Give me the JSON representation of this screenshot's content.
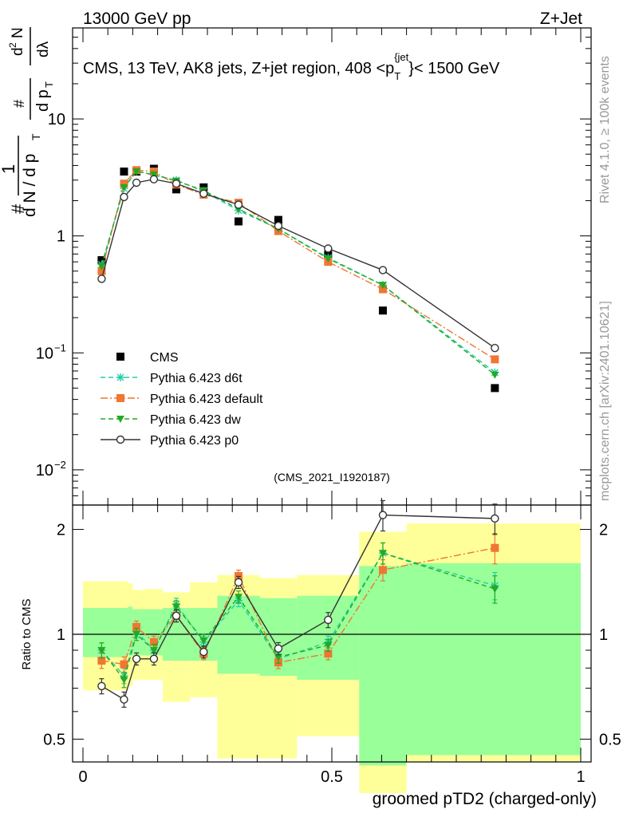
{
  "header": {
    "left": "13000 GeV pp",
    "right": "Z+Jet"
  },
  "side_text": {
    "top": "Rivet 4.1.0, ≥ 100k events",
    "bottom": "mcplots.cern.ch [arXiv:2401.10621]"
  },
  "watermark": "(CMS_2021_I1920187)",
  "chart_data": [
    {
      "type": "scatter",
      "role": "main",
      "title": "CMS, 13 TeV, AK8 jets, Z+jet region, 408 <p_T^{jet}< 1500 GeV",
      "title_parts": {
        "prefix": "CMS, 13 TeV, AK8 jets, Z+jet region, 408 <p",
        "sub": "T",
        "sup": "{jet",
        "suffix": "}< 1500 GeV"
      },
      "ylabel": "1/N dN/dp_T dN/dλ",
      "ylabel_parts": [
        "#",
        "1",
        "d N / d p",
        "T",
        "#",
        "d p",
        "T",
        "d",
        "2",
        "N",
        "dλ"
      ],
      "yscale": "log",
      "ylim": [
        0.005,
        60
      ],
      "xlim": [
        0,
        1
      ],
      "yticklabels": [
        {
          "v": 10,
          "base": "10",
          "exp": ""
        },
        {
          "v": 1,
          "base": "1",
          "exp": ""
        },
        {
          "v": 0.1,
          "base": "10",
          "exp": "−1"
        },
        {
          "v": 0.01,
          "base": "10",
          "exp": "−2"
        }
      ],
      "x": [
        0.0375,
        0.0825,
        0.1075,
        0.1425,
        0.1875,
        0.2425,
        0.3125,
        0.3925,
        0.4925,
        0.6025,
        0.8275
      ],
      "series": [
        {
          "name": "CMS",
          "color": "#000000",
          "marker": "square",
          "line": "none",
          "values": [
            0.62,
            3.55,
            3.55,
            3.75,
            2.5,
            2.6,
            1.33,
            1.37,
            0.69,
            0.23,
            0.05
          ]
        },
        {
          "name": "Pythia 6.423 d6t",
          "color": "#22ccaa",
          "marker": "star",
          "line": "dashed",
          "values": [
            0.57,
            2.55,
            3.6,
            3.3,
            3.0,
            2.4,
            1.65,
            1.15,
            0.65,
            0.38,
            0.068
          ]
        },
        {
          "name": "Pythia 6.423 default",
          "color": "#ee7733",
          "marker": "square",
          "line": "dashdot",
          "values": [
            0.5,
            2.8,
            3.65,
            3.55,
            2.75,
            2.25,
            1.92,
            1.1,
            0.6,
            0.35,
            0.088
          ]
        },
        {
          "name": "Pythia 6.423 dw",
          "color": "#22aa22",
          "marker": "triangle-down",
          "line": "dashed",
          "values": [
            0.55,
            2.6,
            3.55,
            3.35,
            2.95,
            2.45,
            1.7,
            1.15,
            0.64,
            0.38,
            0.065
          ]
        },
        {
          "name": "Pythia 6.423 p0",
          "color": "#333333",
          "marker": "circle-open",
          "line": "solid",
          "values": [
            0.43,
            2.15,
            2.85,
            3.05,
            2.8,
            2.3,
            1.85,
            1.22,
            0.78,
            0.51,
            0.11
          ]
        }
      ],
      "legend_position": "left-lower"
    },
    {
      "type": "scatter",
      "role": "ratio",
      "ylabel": "Ratio to CMS",
      "xlabel": "groomed pTD2 (charged-only)",
      "yscale": "log",
      "ylim": [
        0.43,
        2.35
      ],
      "xlim": [
        0,
        1
      ],
      "yticklabels": [
        {
          "v": 2,
          "label": "2"
        },
        {
          "v": 1,
          "label": "1"
        },
        {
          "v": 0.5,
          "label": "0.5"
        }
      ],
      "xticklabels": [
        {
          "v": 0,
          "label": "0"
        },
        {
          "v": 0.5,
          "label": "0.5"
        },
        {
          "v": 1,
          "label": "1"
        }
      ],
      "bands": {
        "edges": [
          0.0,
          0.09,
          0.1,
          0.125,
          0.16,
          0.215,
          0.27,
          0.355,
          0.43,
          0.555,
          0.65,
          1.0
        ],
        "yellow_lo": [
          0.69,
          0.71,
          0.74,
          0.74,
          0.64,
          0.66,
          0.44,
          0.44,
          0.51,
          0.35,
          0.43
        ],
        "yellow_hi": [
          1.42,
          1.4,
          1.34,
          1.35,
          1.32,
          1.41,
          1.48,
          1.45,
          1.48,
          1.97,
          2.08
        ],
        "green_lo": [
          0.86,
          0.87,
          0.87,
          0.87,
          0.84,
          0.84,
          0.77,
          0.76,
          0.74,
          0.42,
          0.45
        ],
        "green_hi": [
          1.19,
          1.2,
          1.18,
          1.18,
          1.19,
          1.19,
          1.29,
          1.27,
          1.29,
          1.57,
          1.6
        ]
      },
      "x": [
        0.0375,
        0.0825,
        0.1075,
        0.1425,
        0.1875,
        0.2425,
        0.3125,
        0.3925,
        0.4925,
        0.6025,
        0.8275
      ],
      "series": [
        {
          "name": "Pythia 6.423 d6t",
          "color": "#22ccaa",
          "marker": "star",
          "line": "dashed",
          "values": [
            0.9,
            0.76,
            1.02,
            0.9,
            1.22,
            0.95,
            1.25,
            0.85,
            0.95,
            1.71,
            1.38
          ],
          "errors": [
            0.05,
            0.05,
            0.04,
            0.04,
            0.04,
            0.04,
            0.04,
            0.04,
            0.04,
            0.07,
            0.09
          ]
        },
        {
          "name": "Pythia 6.423 default",
          "color": "#ee7733",
          "marker": "square",
          "line": "dashdot",
          "values": [
            0.84,
            0.82,
            1.05,
            0.95,
            1.13,
            0.88,
            1.47,
            0.83,
            0.88,
            1.53,
            1.77
          ],
          "errors": [
            0.05,
            0.05,
            0.04,
            0.04,
            0.04,
            0.04,
            0.04,
            0.04,
            0.04,
            0.07,
            0.1
          ]
        },
        {
          "name": "Pythia 6.423 dw",
          "color": "#22aa22",
          "marker": "triangle-down",
          "line": "dashed",
          "values": [
            0.9,
            0.74,
            1.0,
            0.9,
            1.2,
            0.96,
            1.28,
            0.86,
            0.93,
            1.71,
            1.35
          ],
          "errors": [
            0.05,
            0.05,
            0.04,
            0.04,
            0.04,
            0.04,
            0.04,
            0.04,
            0.04,
            0.07,
            0.09
          ]
        },
        {
          "name": "Pythia 6.423 p0",
          "color": "#333333",
          "marker": "circle-open",
          "line": "solid",
          "values": [
            0.71,
            0.65,
            0.85,
            0.85,
            1.13,
            0.89,
            1.41,
            0.91,
            1.1,
            2.2,
            2.15
          ],
          "errors": [
            0.05,
            0.05,
            0.04,
            0.04,
            0.04,
            0.04,
            0.04,
            0.04,
            0.05,
            0.1,
            0.1
          ]
        }
      ]
    }
  ]
}
